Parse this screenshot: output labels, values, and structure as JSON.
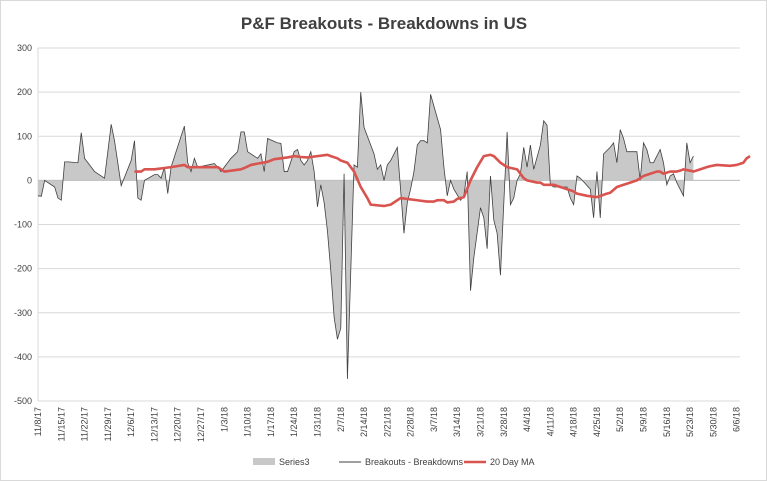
{
  "chart_data": {
    "type": "area",
    "title": "P&F Breakouts - Breakdowns in US",
    "xlabel": "",
    "ylabel": "",
    "ylim": [
      -500,
      300
    ],
    "yticks": [
      300,
      200,
      100,
      0,
      -100,
      -200,
      -300,
      -400,
      -500
    ],
    "grid": true,
    "legend_position": "bottom",
    "colors": {
      "area": "#c8c8c8",
      "line": "#404040",
      "ma": "#d9534f",
      "grid": "#d9d9d9"
    },
    "xticks": [
      "11/8/17",
      "11/15/17",
      "11/22/17",
      "11/29/17",
      "12/6/17",
      "12/13/17",
      "12/20/17",
      "12/27/17",
      "1/3/18",
      "1/10/18",
      "1/17/18",
      "1/24/18",
      "1/31/18",
      "2/7/18",
      "2/14/18",
      "2/21/18",
      "2/28/18",
      "3/7/18",
      "3/14/18",
      "3/21/18",
      "3/28/18",
      "4/4/18",
      "4/11/18",
      "4/18/18",
      "4/25/18",
      "5/2/18",
      "5/9/18",
      "5/16/18",
      "5/23/18",
      "5/30/18",
      "6/6/18"
    ],
    "x_start": "11/8/17",
    "series": [
      {
        "name": "Series3",
        "kind": "area",
        "note": "same values as Breakouts - Breakdowns, drawn as filled area"
      },
      {
        "name": "Breakouts - Breakdowns",
        "kind": "line",
        "points": [
          [
            0,
            -35
          ],
          [
            1,
            -36
          ],
          [
            2,
            0
          ],
          [
            5,
            -15
          ],
          [
            6,
            -40
          ],
          [
            7,
            -45
          ],
          [
            8,
            42
          ],
          [
            9,
            42
          ],
          [
            12,
            40
          ],
          [
            13,
            108
          ],
          [
            14,
            50
          ],
          [
            17,
            20
          ],
          [
            20,
            5
          ],
          [
            22,
            127
          ],
          [
            23,
            90
          ],
          [
            25,
            -12
          ],
          [
            28,
            45
          ],
          [
            29,
            90
          ],
          [
            30,
            -40
          ],
          [
            31,
            -45
          ],
          [
            32,
            0
          ],
          [
            35,
            13
          ],
          [
            36,
            13
          ],
          [
            37,
            5
          ],
          [
            38,
            30
          ],
          [
            39,
            -30
          ],
          [
            40,
            30
          ],
          [
            43,
            100
          ],
          [
            44,
            123
          ],
          [
            45,
            40
          ],
          [
            46,
            20
          ],
          [
            47,
            50
          ],
          [
            48,
            30
          ],
          [
            53,
            38
          ],
          [
            54,
            30
          ],
          [
            55,
            20
          ],
          [
            58,
            50
          ],
          [
            60,
            65
          ],
          [
            61,
            110
          ],
          [
            62,
            110
          ],
          [
            63,
            65
          ],
          [
            66,
            50
          ],
          [
            67,
            60
          ],
          [
            68,
            20
          ],
          [
            69,
            95
          ],
          [
            72,
            85
          ],
          [
            73,
            84
          ],
          [
            74,
            20
          ],
          [
            75,
            20
          ],
          [
            77,
            65
          ],
          [
            78,
            70
          ],
          [
            79,
            45
          ],
          [
            80,
            35
          ],
          [
            81,
            45
          ],
          [
            82,
            65
          ],
          [
            83,
            20
          ],
          [
            84,
            -60
          ],
          [
            85,
            -10
          ],
          [
            86,
            -50
          ],
          [
            87,
            -115
          ],
          [
            88,
            -205
          ],
          [
            89,
            -310
          ],
          [
            90,
            -360
          ],
          [
            91,
            -335
          ],
          [
            92,
            15
          ],
          [
            93,
            -450
          ],
          [
            95,
            35
          ],
          [
            96,
            30
          ],
          [
            97,
            200
          ],
          [
            98,
            120
          ],
          [
            101,
            60
          ],
          [
            102,
            25
          ],
          [
            103,
            35
          ],
          [
            104,
            0
          ],
          [
            105,
            35
          ],
          [
            106,
            45
          ],
          [
            108,
            75
          ],
          [
            110,
            -120
          ],
          [
            111,
            -50
          ],
          [
            112,
            -20
          ],
          [
            113,
            20
          ],
          [
            114,
            80
          ],
          [
            115,
            90
          ],
          [
            116,
            90
          ],
          [
            117,
            85
          ],
          [
            118,
            195
          ],
          [
            121,
            115
          ],
          [
            122,
            30
          ],
          [
            123,
            -35
          ],
          [
            124,
            0
          ],
          [
            125,
            -20
          ],
          [
            127,
            -45
          ],
          [
            128,
            -35
          ],
          [
            129,
            20
          ],
          [
            130,
            -250
          ],
          [
            131,
            -175
          ],
          [
            133,
            -62
          ],
          [
            134,
            -85
          ],
          [
            135,
            -155
          ],
          [
            136,
            10
          ],
          [
            137,
            -90
          ],
          [
            138,
            -120
          ],
          [
            139,
            -215
          ],
          [
            141,
            110
          ],
          [
            142,
            -55
          ],
          [
            143,
            -40
          ],
          [
            144,
            0
          ],
          [
            145,
            15
          ],
          [
            146,
            75
          ],
          [
            147,
            30
          ],
          [
            148,
            80
          ],
          [
            149,
            25
          ],
          [
            151,
            80
          ],
          [
            152,
            135
          ],
          [
            153,
            125
          ],
          [
            154,
            -10
          ],
          [
            155,
            -15
          ],
          [
            159,
            -15
          ],
          [
            160,
            -40
          ],
          [
            161,
            -55
          ],
          [
            162,
            10
          ],
          [
            163,
            5
          ],
          [
            166,
            -20
          ],
          [
            167,
            -85
          ],
          [
            168,
            20
          ],
          [
            169,
            -85
          ],
          [
            170,
            60
          ],
          [
            172,
            75
          ],
          [
            173,
            85
          ],
          [
            174,
            40
          ],
          [
            175,
            115
          ],
          [
            176,
            95
          ],
          [
            177,
            65
          ],
          [
            180,
            65
          ],
          [
            181,
            0
          ],
          [
            182,
            85
          ],
          [
            183,
            70
          ],
          [
            184,
            40
          ],
          [
            185,
            40
          ],
          [
            187,
            70
          ],
          [
            188,
            40
          ],
          [
            189,
            -10
          ],
          [
            190,
            10
          ],
          [
            191,
            15
          ],
          [
            192,
            -5
          ],
          [
            193,
            -20
          ],
          [
            194,
            -35
          ],
          [
            195,
            85
          ],
          [
            196,
            40
          ],
          [
            197,
            55
          ]
        ]
      },
      {
        "name": "20 Day MA",
        "kind": "line",
        "points": [
          [
            29,
            20
          ],
          [
            30,
            20
          ],
          [
            31,
            20
          ],
          [
            32,
            25
          ],
          [
            35,
            25
          ],
          [
            38,
            28
          ],
          [
            40,
            30
          ],
          [
            44,
            35
          ],
          [
            45,
            30
          ],
          [
            48,
            30
          ],
          [
            52,
            30
          ],
          [
            54,
            30
          ],
          [
            55,
            25
          ],
          [
            56,
            20
          ],
          [
            58,
            22
          ],
          [
            61,
            25
          ],
          [
            62,
            28
          ],
          [
            64,
            35
          ],
          [
            66,
            38
          ],
          [
            69,
            42
          ],
          [
            71,
            48
          ],
          [
            75,
            52
          ],
          [
            77,
            55
          ],
          [
            79,
            53
          ],
          [
            81,
            52
          ],
          [
            84,
            55
          ],
          [
            87,
            58
          ],
          [
            88,
            55
          ],
          [
            90,
            50
          ],
          [
            91,
            45
          ],
          [
            93,
            40
          ],
          [
            95,
            20
          ],
          [
            97,
            -15
          ],
          [
            99,
            -40
          ],
          [
            100,
            -55
          ],
          [
            104,
            -58
          ],
          [
            106,
            -55
          ],
          [
            109,
            -40
          ],
          [
            114,
            -45
          ],
          [
            117,
            -48
          ],
          [
            119,
            -48
          ],
          [
            120,
            -45
          ],
          [
            122,
            -45
          ],
          [
            123,
            -50
          ],
          [
            125,
            -48
          ],
          [
            126,
            -42
          ],
          [
            128,
            -38
          ],
          [
            130,
            0
          ],
          [
            132,
            30
          ],
          [
            134,
            55
          ],
          [
            136,
            58
          ],
          [
            137,
            55
          ],
          [
            139,
            40
          ],
          [
            141,
            30
          ],
          [
            144,
            25
          ],
          [
            146,
            5
          ],
          [
            147,
            0
          ],
          [
            150,
            -5
          ],
          [
            151,
            -5
          ],
          [
            152,
            -10
          ],
          [
            155,
            -10
          ],
          [
            157,
            -15
          ],
          [
            159,
            -20
          ],
          [
            161,
            -25
          ],
          [
            162,
            -30
          ],
          [
            165,
            -35
          ],
          [
            168,
            -38
          ],
          [
            171,
            -30
          ],
          [
            172,
            -28
          ],
          [
            174,
            -15
          ],
          [
            176,
            -10
          ],
          [
            178,
            -5
          ],
          [
            180,
            0
          ],
          [
            182,
            10
          ],
          [
            184,
            15
          ],
          [
            186,
            20
          ],
          [
            187,
            20
          ],
          [
            188,
            15
          ],
          [
            190,
            20
          ],
          [
            192,
            20
          ],
          [
            193,
            22
          ],
          [
            194,
            25
          ],
          [
            196,
            22
          ],
          [
            197,
            20
          ],
          [
            199,
            25
          ],
          [
            201,
            30
          ],
          [
            202,
            32
          ],
          [
            204,
            35
          ],
          [
            208,
            33
          ],
          [
            210,
            35
          ],
          [
            212,
            40
          ],
          [
            213,
            50
          ],
          [
            214,
            55
          ]
        ]
      }
    ],
    "x_max_index": 211
  }
}
